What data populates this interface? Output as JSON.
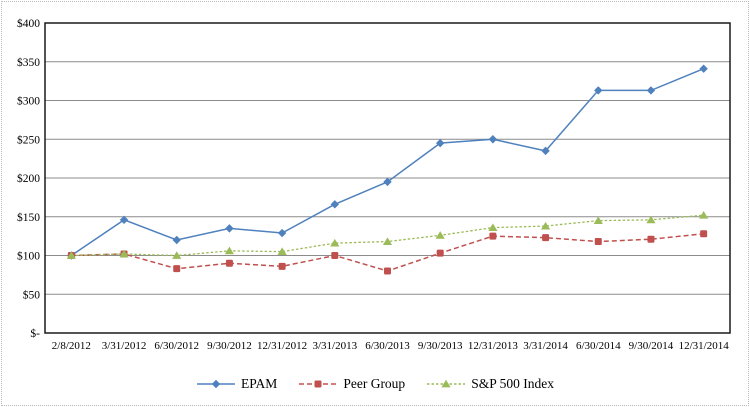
{
  "chart_data": {
    "type": "line",
    "title": "",
    "xlabel": "",
    "ylabel": "",
    "grid": "horizontal",
    "legend_position": "bottom",
    "ylim": [
      0,
      400
    ],
    "categories": [
      "2/8/2012",
      "3/31/2012",
      "6/30/2012",
      "9/30/2012",
      "12/31/2012",
      "3/31/2013",
      "6/30/2013",
      "9/30/2013",
      "12/31/2013",
      "3/31/2014",
      "6/30/2014",
      "9/30/2014",
      "12/31/2014"
    ],
    "y_ticks": [
      {
        "value": 400,
        "label": "$400"
      },
      {
        "value": 350,
        "label": "$350"
      },
      {
        "value": 300,
        "label": "$300"
      },
      {
        "value": 250,
        "label": "$250"
      },
      {
        "value": 200,
        "label": "$200"
      },
      {
        "value": 150,
        "label": "$150"
      },
      {
        "value": 100,
        "label": "$100"
      },
      {
        "value": 50,
        "label": "$50"
      },
      {
        "value": 0,
        "label": "$-"
      }
    ],
    "series": [
      {
        "name": "EPAM",
        "color": "#4F81BD",
        "line_style": "solid",
        "marker": "diamond",
        "values": [
          100,
          146,
          120,
          135,
          129,
          166,
          195,
          245,
          250,
          235,
          313,
          313,
          341
        ]
      },
      {
        "name": "Peer Group",
        "color": "#C0504D",
        "line_style": "dashed",
        "marker": "square",
        "values": [
          100,
          102,
          83,
          90,
          86,
          100,
          80,
          103,
          125,
          123,
          118,
          121,
          128
        ]
      },
      {
        "name": "S&P 500 Index",
        "color": "#9BBB59",
        "line_style": "short-dash",
        "marker": "triangle",
        "values": [
          100,
          102,
          100,
          106,
          105,
          116,
          118,
          126,
          136,
          138,
          145,
          146,
          152
        ]
      }
    ],
    "axis_color": "#1a1a1a",
    "gridline_color": "#8c8c8c"
  }
}
